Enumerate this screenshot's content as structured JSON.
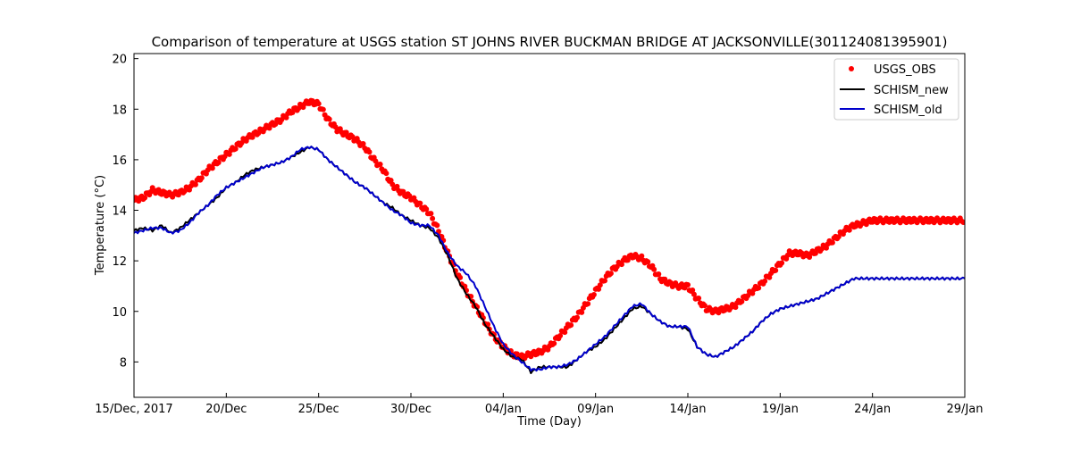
{
  "chart_data": {
    "type": "line",
    "title": "Comparison of temperature at USGS station ST JOHNS RIVER BUCKMAN BRIDGE AT JACKSONVILLE(301124081395901)",
    "xlabel": "Time (Day)",
    "ylabel": "Temperature ($^\\circ$C)",
    "ylabel_display": "Temperature (°C)",
    "xlim": [
      0,
      45
    ],
    "ylim": [
      6.6,
      20.2
    ],
    "x_ticks": [
      0,
      5,
      10,
      15,
      20,
      25,
      30,
      35,
      40,
      45
    ],
    "x_tick_labels": [
      "15/Dec, 2017",
      "20/Dec",
      "25/Dec",
      "30/Dec",
      "04/Jan",
      "09/Jan",
      "14/Jan",
      "19/Jan",
      "24/Jan",
      "29/Jan"
    ],
    "y_ticks": [
      8,
      10,
      12,
      14,
      16,
      18,
      20
    ],
    "y_tick_labels": [
      "8",
      "10",
      "12",
      "14",
      "16",
      "18",
      "20"
    ],
    "grid": false,
    "legend_position": "top-right",
    "series": [
      {
        "name": "USGS_OBS",
        "style": "markers",
        "color": "#ff0000",
        "x": [
          0,
          0.5,
          1,
          1.5,
          2,
          2.5,
          3,
          3.5,
          4,
          4.5,
          5,
          5.5,
          6,
          6.5,
          7,
          7.5,
          8,
          8.5,
          9,
          9.5,
          10,
          10.5,
          11,
          11.5,
          12,
          12.5,
          13,
          13.5,
          14,
          14.5,
          15,
          15.5,
          16,
          16.5,
          17,
          17.5,
          18,
          18.5,
          19,
          19.5,
          20,
          20.5,
          21,
          21.5,
          22,
          22.5,
          23,
          23.5,
          24,
          24.5,
          25,
          25.5,
          26,
          26.5,
          27,
          27.5,
          28,
          28.5,
          29,
          29.5,
          30,
          30.5,
          31,
          31.5,
          32,
          32.5,
          33,
          33.5,
          34,
          34.5,
          35,
          35.5,
          36,
          36.5,
          37,
          37.5,
          38,
          38.5,
          39,
          39.5,
          40,
          40.5,
          41,
          41.5,
          42,
          42.5,
          43,
          43.5,
          44,
          44.5,
          45
        ],
        "y": [
          14.4,
          14.5,
          14.8,
          14.7,
          14.6,
          14.7,
          14.9,
          15.2,
          15.6,
          15.9,
          16.2,
          16.5,
          16.8,
          17.0,
          17.2,
          17.4,
          17.6,
          17.9,
          18.1,
          18.3,
          18.2,
          17.6,
          17.2,
          17.0,
          16.8,
          16.5,
          16.0,
          15.6,
          15.0,
          14.7,
          14.5,
          14.2,
          13.9,
          13.2,
          12.3,
          11.5,
          10.8,
          10.2,
          9.6,
          9.0,
          8.6,
          8.3,
          8.2,
          8.3,
          8.4,
          8.6,
          9.0,
          9.4,
          9.8,
          10.3,
          10.8,
          11.3,
          11.7,
          12.0,
          12.2,
          12.1,
          11.8,
          11.3,
          11.1,
          11.0,
          11.0,
          10.5,
          10.1,
          10.0,
          10.1,
          10.2,
          10.5,
          10.8,
          11.1,
          11.5,
          11.9,
          12.3,
          12.3,
          12.2,
          12.4,
          12.6,
          12.9,
          13.2,
          13.4,
          13.5,
          13.6,
          13.6,
          13.6,
          13.6,
          13.6,
          13.6,
          13.6,
          13.6,
          13.6,
          13.6,
          13.6
        ]
      },
      {
        "name": "SCHISM_new",
        "style": "line",
        "color": "#000000",
        "x": [
          0,
          0.5,
          1,
          1.5,
          2,
          2.5,
          3,
          3.5,
          4,
          4.5,
          5,
          5.5,
          6,
          6.5,
          7,
          7.5,
          8,
          8.5,
          9,
          9.5,
          10,
          10.5,
          11,
          11.5,
          12,
          12.5,
          13,
          13.5,
          14,
          14.5,
          15,
          15.5,
          16,
          16.5,
          17,
          17.5,
          18,
          18.5,
          19,
          19.5,
          20,
          20.5,
          21,
          21.5,
          22,
          22.5,
          23,
          23.5,
          24,
          24.5,
          25,
          25.5,
          26,
          26.5,
          27,
          27.5,
          28,
          28.5,
          29,
          29.5,
          30,
          30.5,
          31,
          31.5,
          32,
          32.5,
          33,
          33.5,
          34,
          34.5,
          35,
          35.5,
          36,
          36.5,
          37,
          37.5,
          38,
          38.5,
          39,
          39.5,
          40,
          40.5,
          41,
          41.5,
          42,
          42.5,
          43,
          43.5,
          44,
          44.5,
          45
        ],
        "y": [
          13.2,
          13.3,
          13.2,
          13.4,
          13.1,
          13.3,
          13.6,
          13.9,
          14.2,
          14.5,
          14.9,
          15.1,
          15.4,
          15.6,
          15.7,
          15.8,
          15.9,
          16.1,
          16.3,
          16.5,
          16.4,
          16.0,
          15.7,
          15.4,
          15.1,
          14.9,
          14.6,
          14.3,
          14.1,
          13.8,
          13.6,
          13.4,
          13.3,
          12.9,
          12.2,
          11.3,
          10.7,
          10.2,
          9.5,
          9.0,
          8.5,
          8.2,
          8.1,
          7.6,
          7.8,
          7.8,
          7.8,
          7.8,
          8.1,
          8.4,
          8.6,
          8.9,
          9.3,
          9.7,
          10.1,
          10.2,
          9.9,
          9.6,
          9.4,
          9.4,
          9.3,
          8.6,
          8.3,
          8.2,
          8.4,
          8.6,
          8.9,
          9.2,
          9.6,
          9.9,
          10.1,
          10.2,
          10.3,
          10.4,
          10.5,
          10.7,
          10.9,
          11.1,
          11.3,
          11.3,
          11.3,
          11.3,
          11.3,
          11.3,
          11.3,
          11.3,
          11.3,
          11.3,
          11.3,
          11.3,
          11.3
        ]
      },
      {
        "name": "SCHISM_old",
        "style": "line",
        "color": "#0000cc",
        "x": [
          0,
          0.5,
          1,
          1.5,
          2,
          2.5,
          3,
          3.5,
          4,
          4.5,
          5,
          5.5,
          6,
          6.5,
          7,
          7.5,
          8,
          8.5,
          9,
          9.5,
          10,
          10.5,
          11,
          11.5,
          12,
          12.5,
          13,
          13.5,
          14,
          14.5,
          15,
          15.5,
          16,
          16.5,
          17,
          17.5,
          18,
          18.5,
          19,
          19.5,
          20,
          20.5,
          21,
          21.5,
          22,
          22.5,
          23,
          23.5,
          24,
          24.5,
          25,
          25.5,
          26,
          26.5,
          27,
          27.5,
          28,
          28.5,
          29,
          29.5,
          30,
          30.5,
          31,
          31.5,
          32,
          32.5,
          33,
          33.5,
          34,
          34.5,
          35,
          35.5,
          36,
          36.5,
          37,
          37.5,
          38,
          38.5,
          39,
          39.5,
          40,
          40.5,
          41,
          41.5,
          42,
          42.5,
          43,
          43.5,
          44,
          44.5,
          45
        ],
        "y": [
          13.1,
          13.2,
          13.3,
          13.3,
          13.1,
          13.2,
          13.5,
          13.9,
          14.2,
          14.6,
          14.9,
          15.1,
          15.3,
          15.5,
          15.7,
          15.8,
          15.9,
          16.1,
          16.4,
          16.5,
          16.4,
          16.0,
          15.7,
          15.4,
          15.1,
          14.9,
          14.6,
          14.3,
          14.0,
          13.8,
          13.5,
          13.4,
          13.4,
          13.0,
          12.3,
          11.8,
          11.5,
          11.0,
          10.2,
          9.4,
          8.7,
          8.3,
          8.0,
          7.7,
          7.7,
          7.8,
          7.8,
          7.9,
          8.1,
          8.4,
          8.7,
          9.0,
          9.4,
          9.8,
          10.2,
          10.3,
          9.9,
          9.6,
          9.4,
          9.4,
          9.4,
          8.6,
          8.3,
          8.2,
          8.4,
          8.6,
          8.9,
          9.2,
          9.6,
          9.9,
          10.1,
          10.2,
          10.3,
          10.4,
          10.5,
          10.7,
          10.9,
          11.1,
          11.3,
          11.3,
          11.3,
          11.3,
          11.3,
          11.3,
          11.3,
          11.3,
          11.3,
          11.3,
          11.3,
          11.3,
          11.3
        ]
      }
    ]
  }
}
